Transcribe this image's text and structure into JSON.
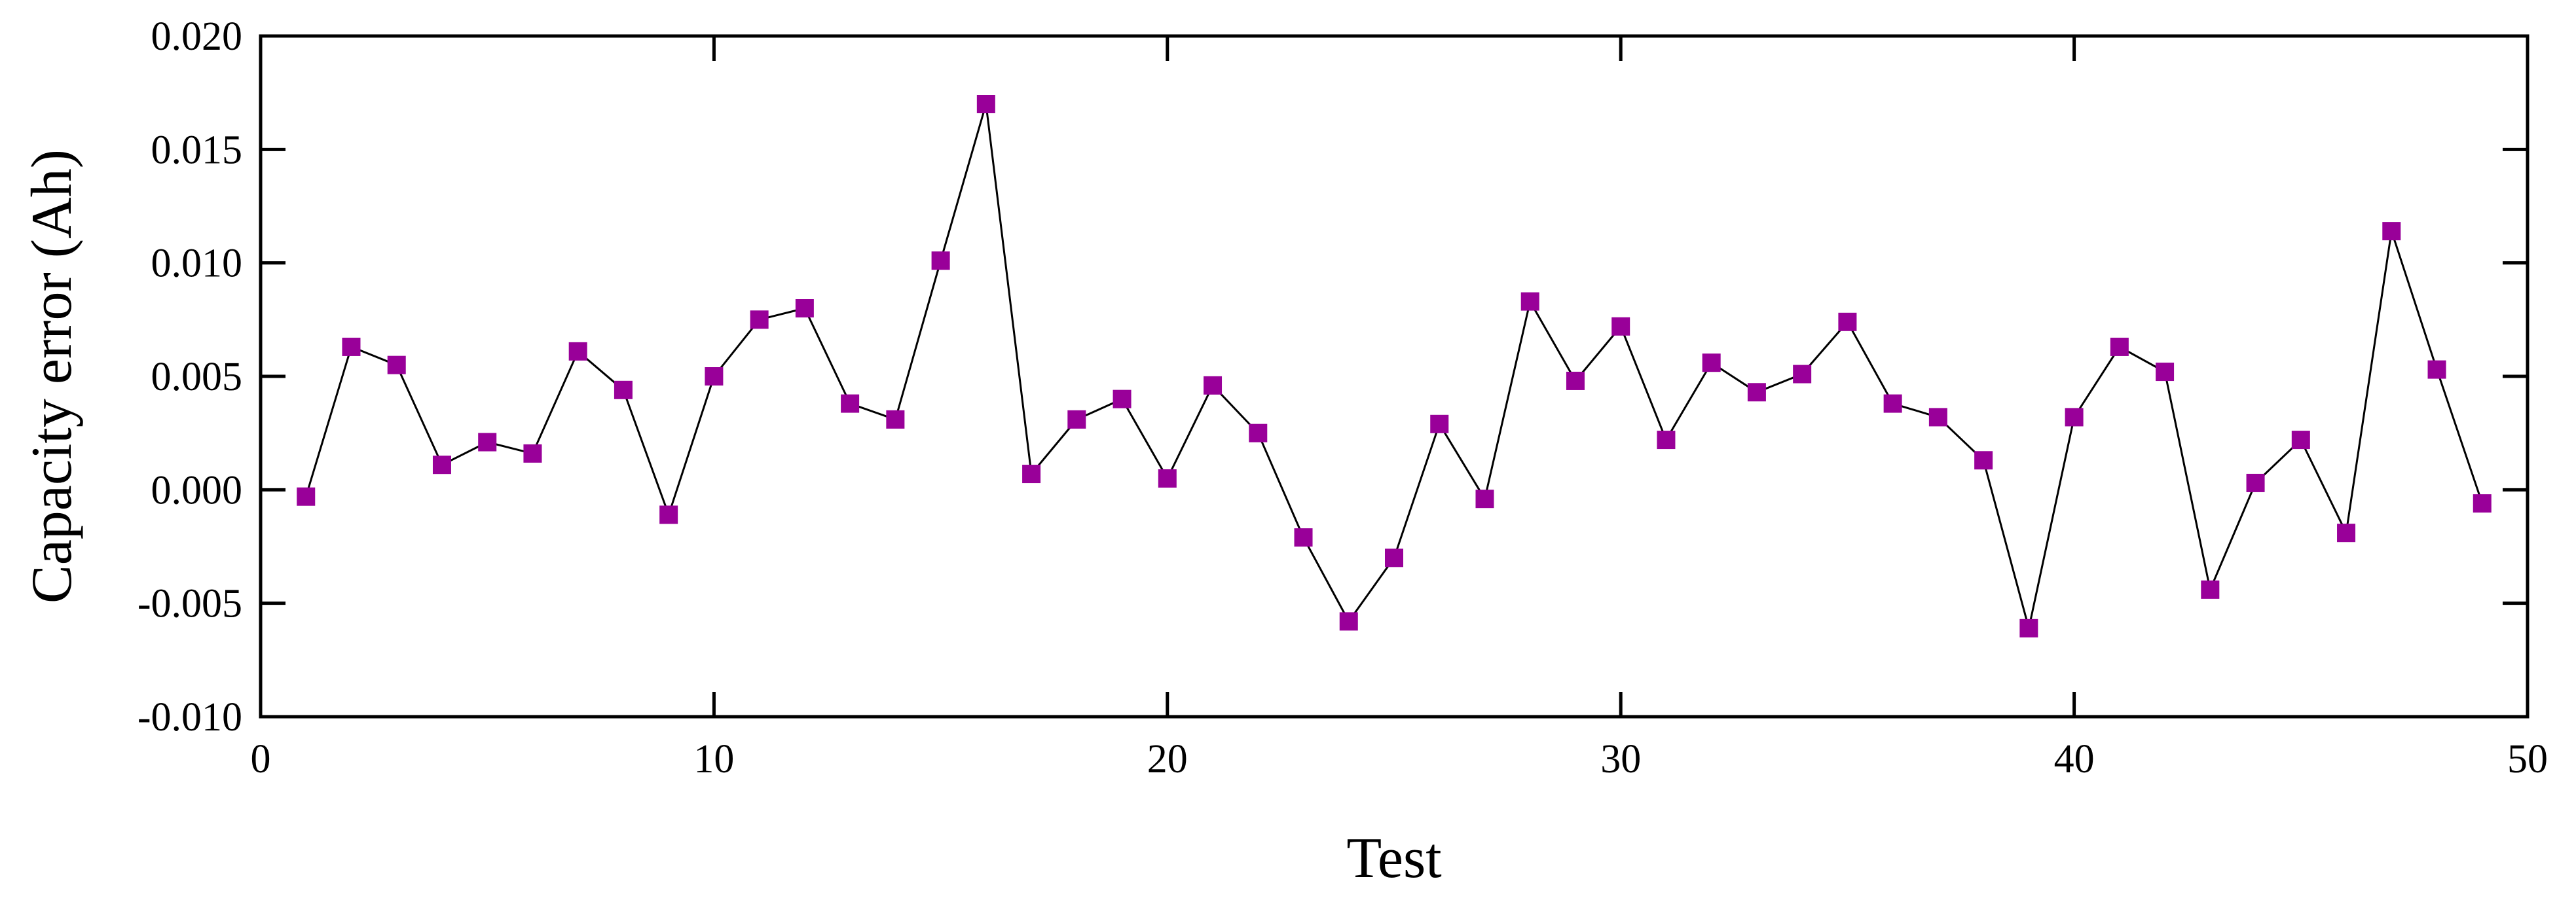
{
  "chart_data": {
    "type": "scatter",
    "xlabel": "Test",
    "ylabel": "Capacity error (Ah)",
    "xlim": [
      0,
      50
    ],
    "ylim": [
      -0.01,
      0.02
    ],
    "grid": false,
    "marker_color": "#990099",
    "line_color": "#000000",
    "x_ticks": [
      {
        "value": 0,
        "label": "0"
      },
      {
        "value": 10,
        "label": "10"
      },
      {
        "value": 20,
        "label": "20"
      },
      {
        "value": 30,
        "label": "30"
      },
      {
        "value": 40,
        "label": "40"
      },
      {
        "value": 50,
        "label": "50"
      }
    ],
    "y_ticks": [
      {
        "value": -0.01,
        "label": "-0.010"
      },
      {
        "value": -0.005,
        "label": "-0.005"
      },
      {
        "value": 0,
        "label": "0.000"
      },
      {
        "value": 0.005,
        "label": "0.005"
      },
      {
        "value": 0.01,
        "label": "0.010"
      },
      {
        "value": 0.015,
        "label": "0.015"
      },
      {
        "value": 0.02,
        "label": "0.020"
      }
    ],
    "series": [
      {
        "x": [
          1,
          2,
          3,
          4,
          5,
          6,
          7,
          8,
          9,
          10,
          11,
          12,
          13,
          14,
          15,
          16,
          17,
          18,
          19,
          20,
          21,
          22,
          23,
          24,
          25,
          26,
          27,
          28,
          29,
          30,
          31,
          32,
          33,
          34,
          35,
          36,
          37,
          38,
          39,
          40,
          41,
          42,
          43,
          44,
          45,
          46,
          47,
          48,
          49
        ],
        "y": [
          -0.0003,
          0.0063,
          0.0055,
          0.0011,
          0.0021,
          0.0016,
          0.0061,
          0.0044,
          -0.0011,
          0.005,
          0.0075,
          0.008,
          0.0038,
          0.0031,
          0.0101,
          0.017,
          0.0007,
          0.0031,
          0.004,
          0.0005,
          0.0046,
          0.0025,
          -0.0021,
          -0.0058,
          -0.003,
          0.0029,
          -0.0004,
          0.0083,
          0.0048,
          0.0072,
          0.0022,
          0.0056,
          0.0043,
          0.0051,
          0.0074,
          0.0038,
          0.0032,
          0.0013,
          -0.0061,
          0.0032,
          0.0063,
          0.0052,
          -0.0044,
          0.0003,
          0.0022,
          -0.0019,
          0.0114,
          0.0053,
          -0.0006
        ]
      }
    ]
  }
}
